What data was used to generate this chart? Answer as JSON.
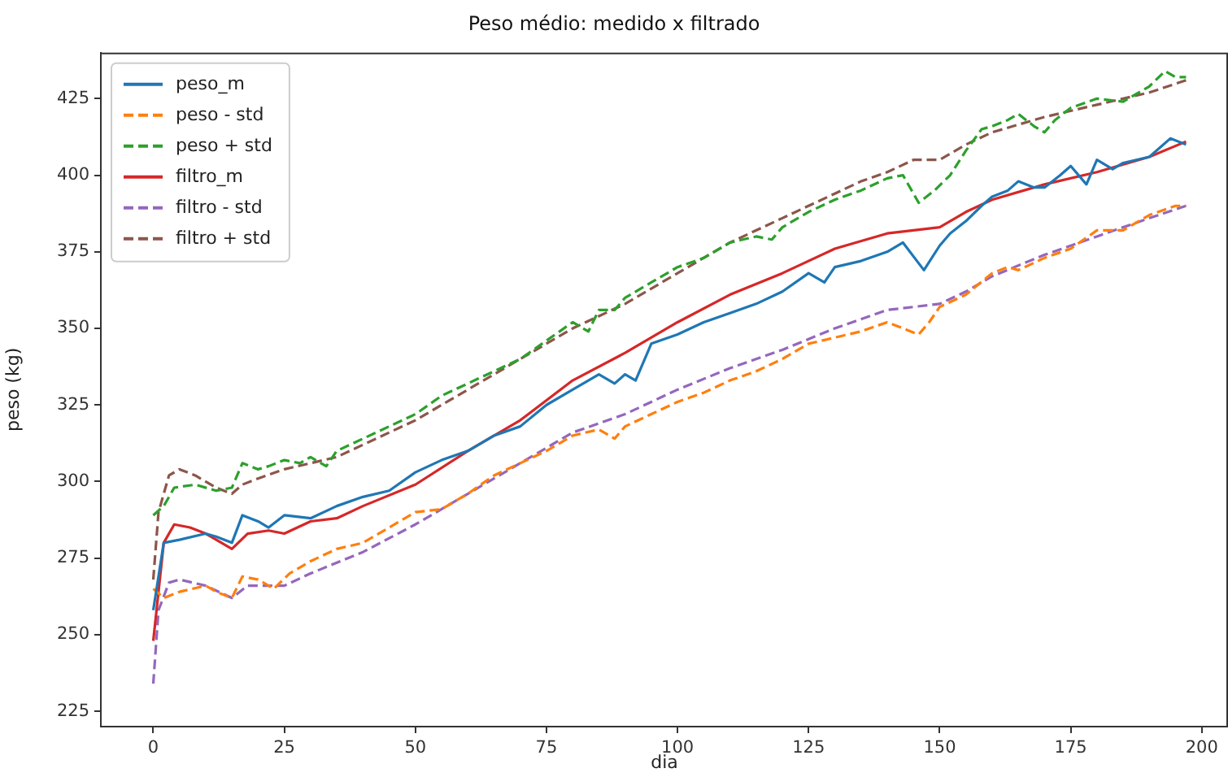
{
  "chart_data": {
    "type": "line",
    "title": "Peso médio: medido x filtrado",
    "xlabel": "dia",
    "ylabel": "peso (kg)",
    "xlim": [
      -10,
      205
    ],
    "ylim": [
      220,
      440
    ],
    "xticks": [
      0,
      25,
      50,
      75,
      100,
      125,
      150,
      175,
      200
    ],
    "yticks": [
      225,
      250,
      275,
      300,
      325,
      350,
      375,
      400,
      425
    ],
    "grid": false,
    "legend": "top left",
    "marker": "none",
    "series": [
      {
        "name": "peso_m",
        "color": "#1f77b4",
        "line_style": "solid",
        "x": [
          0,
          2,
          5,
          10,
          12,
          15,
          17,
          20,
          22,
          25,
          30,
          35,
          40,
          45,
          50,
          55,
          60,
          65,
          70,
          75,
          80,
          85,
          88,
          90,
          92,
          95,
          100,
          105,
          110,
          115,
          120,
          125,
          128,
          130,
          135,
          140,
          143,
          147,
          150,
          152,
          155,
          158,
          160,
          163,
          165,
          168,
          170,
          173,
          175,
          178,
          180,
          183,
          185,
          190,
          194,
          197
        ],
        "values": [
          258,
          280,
          281,
          283,
          282,
          280,
          289,
          287,
          285,
          289,
          288,
          292,
          295,
          297,
          303,
          307,
          310,
          315,
          318,
          325,
          330,
          335,
          332,
          335,
          333,
          345,
          348,
          352,
          355,
          358,
          362,
          368,
          365,
          370,
          372,
          375,
          378,
          369,
          377,
          381,
          385,
          390,
          393,
          395,
          398,
          396,
          396,
          400,
          403,
          397,
          405,
          402,
          404,
          406,
          412,
          410
        ]
      },
      {
        "name": "peso - std",
        "color": "#ff7f0e",
        "line_style": "dashed",
        "x": [
          0,
          2,
          5,
          10,
          12,
          15,
          17,
          20,
          23,
          26,
          30,
          35,
          40,
          45,
          50,
          55,
          60,
          65,
          70,
          75,
          80,
          85,
          88,
          90,
          95,
          100,
          105,
          110,
          115,
          120,
          125,
          130,
          135,
          140,
          143,
          146,
          148,
          150,
          155,
          160,
          163,
          165,
          170,
          175,
          180,
          185,
          190,
          195,
          197
        ],
        "values": [
          265,
          262,
          264,
          266,
          264,
          262,
          269,
          268,
          265,
          270,
          274,
          278,
          280,
          285,
          290,
          291,
          296,
          302,
          306,
          310,
          315,
          317,
          314,
          318,
          322,
          326,
          329,
          333,
          336,
          340,
          345,
          347,
          349,
          352,
          350,
          348,
          352,
          357,
          361,
          368,
          370,
          369,
          373,
          376,
          382,
          382,
          387,
          390,
          390
        ]
      },
      {
        "name": "peso + std",
        "color": "#2ca02c",
        "line_style": "dashed",
        "x": [
          0,
          2,
          4,
          8,
          12,
          15,
          17,
          20,
          22,
          25,
          28,
          30,
          33,
          35,
          40,
          45,
          50,
          55,
          60,
          65,
          70,
          75,
          80,
          83,
          85,
          88,
          90,
          95,
          100,
          105,
          110,
          115,
          118,
          120,
          125,
          130,
          135,
          140,
          143,
          146,
          149,
          152,
          155,
          158,
          160,
          163,
          165,
          168,
          170,
          172,
          175,
          180,
          185,
          190,
          193,
          195,
          197
        ],
        "values": [
          289,
          292,
          298,
          299,
          297,
          298,
          306,
          304,
          305,
          307,
          306,
          308,
          305,
          310,
          314,
          318,
          322,
          328,
          332,
          336,
          340,
          346,
          352,
          349,
          356,
          356,
          360,
          365,
          370,
          373,
          378,
          380,
          379,
          383,
          388,
          392,
          395,
          399,
          400,
          391,
          395,
          400,
          408,
          415,
          416,
          418,
          420,
          416,
          414,
          418,
          422,
          425,
          424,
          429,
          434,
          432,
          432
        ]
      },
      {
        "name": "filtro_m",
        "color": "#d62728",
        "line_style": "solid",
        "x": [
          0,
          2,
          4,
          7,
          10,
          15,
          18,
          22,
          25,
          30,
          35,
          40,
          50,
          60,
          70,
          80,
          90,
          100,
          110,
          120,
          130,
          140,
          145,
          150,
          155,
          160,
          170,
          180,
          190,
          197
        ],
        "values": [
          248,
          280,
          286,
          285,
          283,
          278,
          283,
          284,
          283,
          287,
          288,
          292,
          299,
          310,
          320,
          333,
          342,
          352,
          361,
          368,
          376,
          381,
          382,
          383,
          388,
          392,
          397,
          401,
          406,
          411
        ]
      },
      {
        "name": "filtro - std",
        "color": "#9467bd",
        "line_style": "dashed",
        "x": [
          0,
          1,
          3,
          5,
          10,
          15,
          18,
          22,
          25,
          30,
          40,
          50,
          60,
          70,
          80,
          90,
          100,
          110,
          120,
          130,
          140,
          150,
          155,
          160,
          170,
          180,
          190,
          197
        ],
        "values": [
          234,
          258,
          267,
          268,
          266,
          262,
          266,
          266,
          266,
          270,
          277,
          286,
          296,
          306,
          316,
          322,
          330,
          337,
          343,
          350,
          356,
          358,
          362,
          367,
          374,
          380,
          386,
          390
        ]
      },
      {
        "name": "filtro + std",
        "color": "#8c564b",
        "line_style": "dashed",
        "x": [
          0,
          1,
          3,
          5,
          8,
          12,
          15,
          17,
          20,
          25,
          30,
          35,
          40,
          50,
          60,
          70,
          80,
          90,
          100,
          110,
          120,
          130,
          135,
          140,
          145,
          150,
          155,
          160,
          170,
          180,
          190,
          197
        ],
        "values": [
          268,
          290,
          302,
          304,
          302,
          298,
          296,
          299,
          301,
          304,
          306,
          308,
          312,
          320,
          330,
          340,
          350,
          358,
          368,
          378,
          386,
          394,
          398,
          401,
          405,
          405,
          410,
          414,
          419,
          423,
          427,
          431
        ]
      }
    ]
  }
}
